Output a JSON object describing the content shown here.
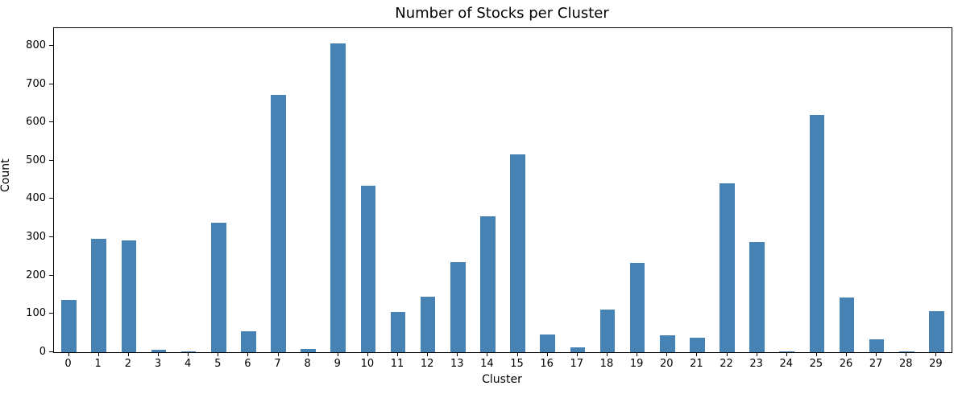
{
  "chart_data": {
    "type": "bar",
    "title": "Number of Stocks per Cluster",
    "xlabel": "Cluster",
    "ylabel": "Count",
    "categories": [
      "0",
      "1",
      "2",
      "3",
      "4",
      "5",
      "6",
      "7",
      "8",
      "9",
      "10",
      "11",
      "12",
      "13",
      "14",
      "15",
      "16",
      "17",
      "18",
      "19",
      "20",
      "21",
      "22",
      "23",
      "24",
      "25",
      "26",
      "27",
      "28",
      "29"
    ],
    "values": [
      137,
      297,
      291,
      7,
      3,
      339,
      54,
      672,
      9,
      806,
      435,
      106,
      144,
      235,
      354,
      517,
      46,
      13,
      112,
      233,
      44,
      37,
      440,
      287,
      3,
      620,
      142,
      33,
      2,
      108
    ],
    "yticks": [
      0,
      100,
      200,
      300,
      400,
      500,
      600,
      700,
      800
    ],
    "ylim": [
      0,
      846
    ],
    "bar_color": "#4682b4",
    "axis_color": "#000000",
    "grid": false,
    "legend_position": "none"
  }
}
